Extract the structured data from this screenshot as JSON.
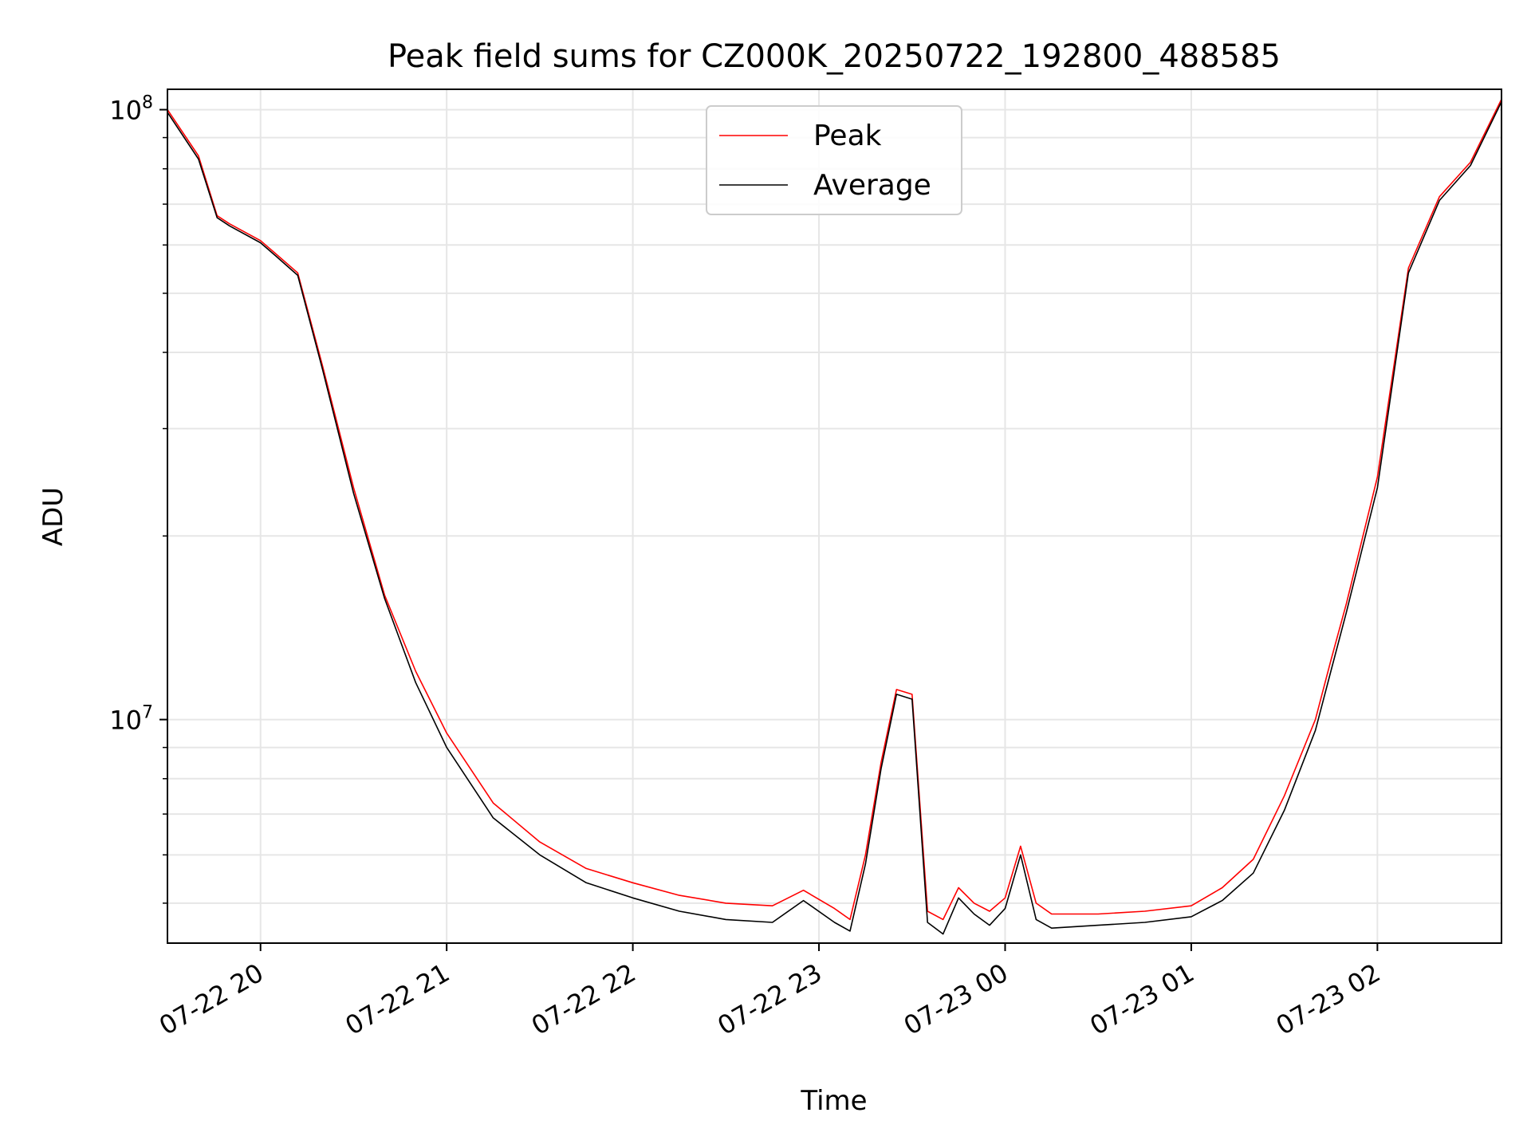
{
  "chart_data": {
    "type": "line",
    "title": "Peak field sums for CZ000K_20250722_192800_488585",
    "xlabel": "Time",
    "ylabel": "ADU",
    "y_scale": "log",
    "ylim": [
      4300000,
      108000000
    ],
    "xlim": [
      "2025-07-22 19:30",
      "2025-07-23 02:40"
    ],
    "grid": true,
    "legend_placement": "top-center",
    "x_ticks": [
      {
        "t": "2025-07-22 20:00",
        "label": "07-22 20"
      },
      {
        "t": "2025-07-22 21:00",
        "label": "07-22 21"
      },
      {
        "t": "2025-07-22 22:00",
        "label": "07-22 22"
      },
      {
        "t": "2025-07-22 23:00",
        "label": "07-22 23"
      },
      {
        "t": "2025-07-23 00:00",
        "label": "07-23 00"
      },
      {
        "t": "2025-07-23 01:00",
        "label": "07-23 01"
      },
      {
        "t": "2025-07-23 02:00",
        "label": "07-23 02"
      }
    ],
    "y_ticks": [
      {
        "value": 10000000,
        "base": "10",
        "exp": "7"
      },
      {
        "value": 100000000,
        "base": "10",
        "exp": "8"
      }
    ],
    "x": [
      "2025-07-22 19:30",
      "2025-07-22 19:40",
      "2025-07-22 19:46",
      "2025-07-22 19:50",
      "2025-07-22 20:00",
      "2025-07-22 20:05",
      "2025-07-22 20:12",
      "2025-07-22 20:20",
      "2025-07-22 20:30",
      "2025-07-22 20:40",
      "2025-07-22 20:50",
      "2025-07-22 21:00",
      "2025-07-22 21:15",
      "2025-07-22 21:30",
      "2025-07-22 21:45",
      "2025-07-22 22:00",
      "2025-07-22 22:15",
      "2025-07-22 22:30",
      "2025-07-22 22:45",
      "2025-07-22 22:55",
      "2025-07-22 23:05",
      "2025-07-22 23:10",
      "2025-07-22 23:15",
      "2025-07-22 23:20",
      "2025-07-22 23:25",
      "2025-07-22 23:30",
      "2025-07-22 23:35",
      "2025-07-22 23:40",
      "2025-07-22 23:45",
      "2025-07-22 23:50",
      "2025-07-22 23:55",
      "2025-07-23 00:00",
      "2025-07-23 00:05",
      "2025-07-23 00:10",
      "2025-07-23 00:15",
      "2025-07-23 00:30",
      "2025-07-23 00:45",
      "2025-07-23 01:00",
      "2025-07-23 01:10",
      "2025-07-23 01:20",
      "2025-07-23 01:30",
      "2025-07-23 01:40",
      "2025-07-23 01:45",
      "2025-07-23 01:50",
      "2025-07-23 02:00",
      "2025-07-23 02:10",
      "2025-07-23 02:20",
      "2025-07-23 02:30",
      "2025-07-23 02:40"
    ],
    "series": [
      {
        "name": "Peak",
        "color": "#ff0000",
        "values": [
          100000000,
          84000000,
          67000000,
          65000000,
          61000000,
          58000000,
          54000000,
          38000000,
          24000000,
          16000000,
          12000000,
          9500000,
          7300000,
          6300000,
          5700000,
          5400000,
          5150000,
          5000000,
          4950000,
          5250000,
          4900000,
          4700000,
          6000000,
          8500000,
          11200000,
          11000000,
          4850000,
          4700000,
          5300000,
          5000000,
          4850000,
          5100000,
          6200000,
          5000000,
          4800000,
          4800000,
          4850000,
          4950000,
          5300000,
          5900000,
          7500000,
          10000000,
          12500000,
          15500000,
          25000000,
          55000000,
          72000000,
          82000000,
          104000000
        ]
      },
      {
        "name": "Average",
        "color": "#000000",
        "values": [
          99000000,
          83000000,
          66500000,
          64500000,
          60500000,
          57500000,
          53500000,
          37500000,
          23500000,
          15800000,
          11500000,
          9000000,
          6900000,
          6000000,
          5400000,
          5100000,
          4850000,
          4700000,
          4650000,
          5050000,
          4650000,
          4500000,
          5800000,
          8300000,
          11000000,
          10800000,
          4650000,
          4450000,
          5100000,
          4800000,
          4600000,
          4900000,
          6000000,
          4700000,
          4550000,
          4600000,
          4650000,
          4750000,
          5050000,
          5600000,
          7100000,
          9600000,
          12000000,
          15000000,
          24000000,
          54000000,
          71000000,
          81000000,
          103000000
        ]
      }
    ]
  }
}
